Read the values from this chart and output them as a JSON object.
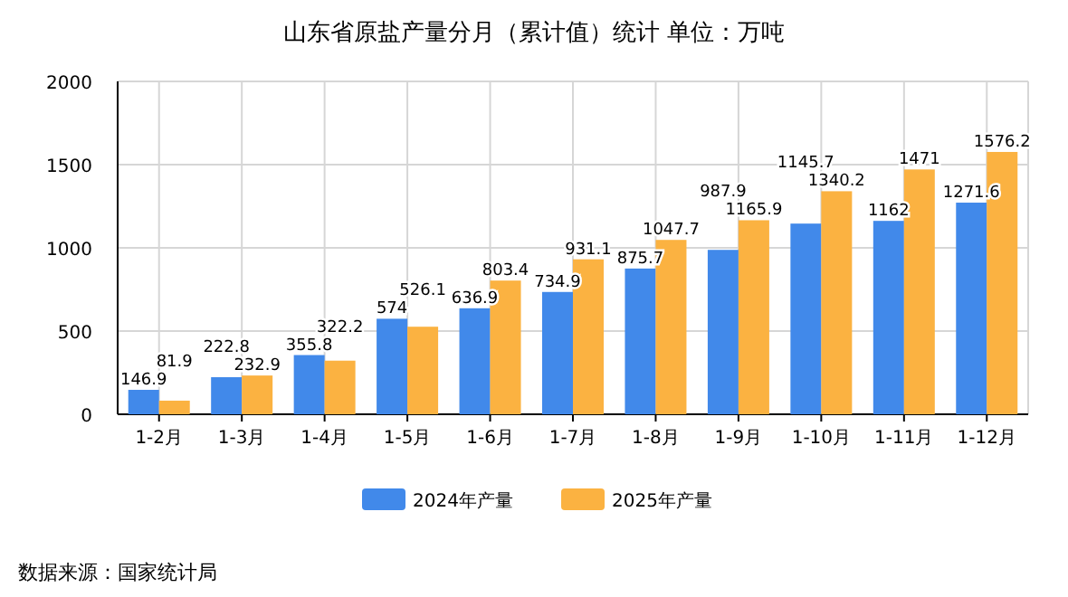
{
  "chart_data": {
    "type": "bar",
    "title": "山东省原盐产量分月（累计值）统计  单位：万吨",
    "categories": [
      "1-2月",
      "1-3月",
      "1-4月",
      "1-5月",
      "1-6月",
      "1-7月",
      "1-8月",
      "1-9月",
      "1-10月",
      "1-11月",
      "1-12月"
    ],
    "series": [
      {
        "name": "2024年产量",
        "color": "#4189ea",
        "values": [
          146.9,
          222.8,
          355.8,
          574,
          636.9,
          734.9,
          875.7,
          987.9,
          1145.7,
          1162,
          1271.6
        ]
      },
      {
        "name": "2025年产量",
        "color": "#fbb241",
        "values": [
          81.9,
          232.9,
          322.2,
          526.1,
          803.4,
          931.1,
          1047.7,
          1165.9,
          1340.2,
          1471,
          1576.2
        ]
      }
    ],
    "ylim": [
      0,
      2000
    ],
    "yticks": [
      0,
      500,
      1000,
      1500,
      2000
    ],
    "grid": true,
    "legend": "bottom",
    "data_labels": true,
    "annotations": [
      "数据来源：国家统计局"
    ]
  }
}
